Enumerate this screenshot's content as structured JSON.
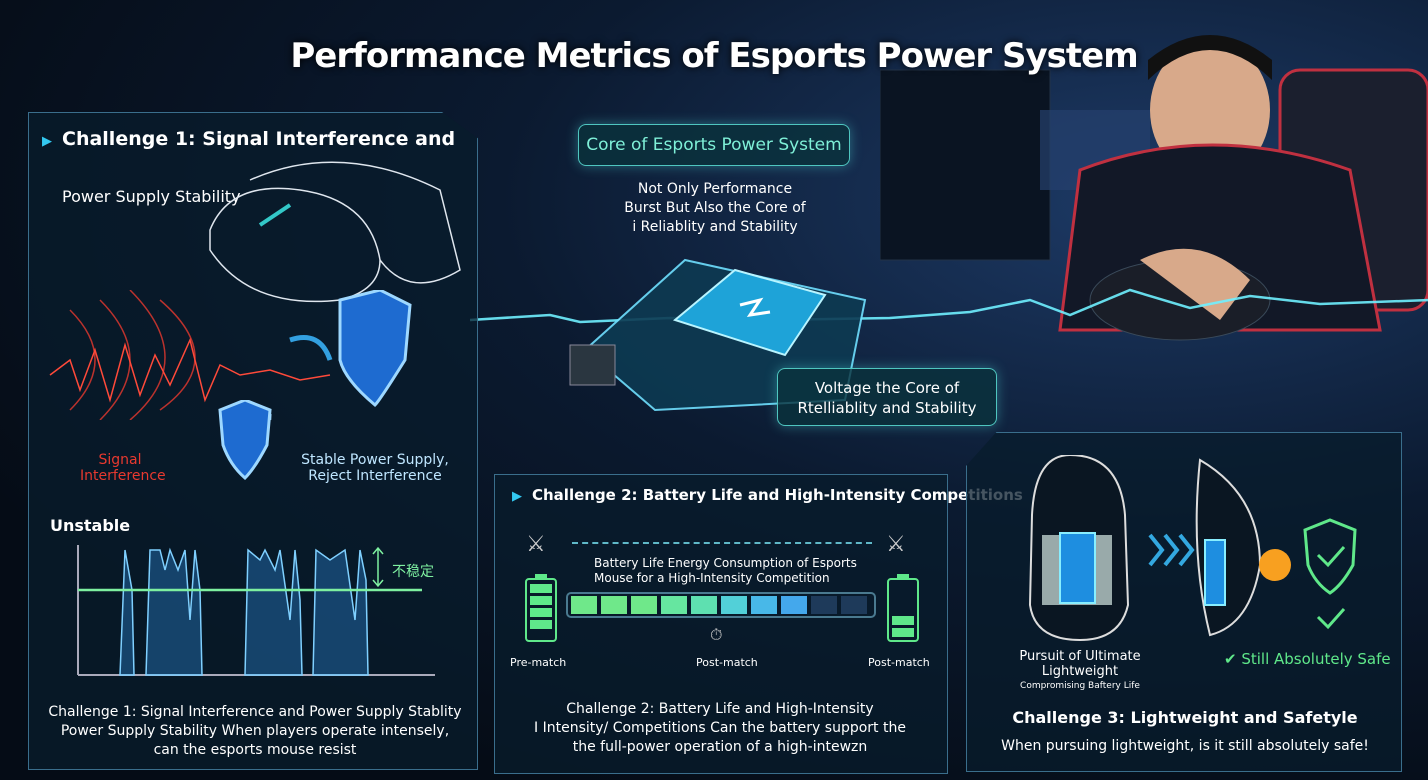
{
  "title": "Performance Metrics of Esports Power System",
  "colors": {
    "accent": "#33c8f0",
    "green": "#5fe88a",
    "red": "#e8392f",
    "panel_border": "#3a6e8c"
  },
  "challenge1": {
    "header": "Challenge 1:  Signal Interference and",
    "subheader": "Power Supply Stability",
    "signal_label": "Signal Interference",
    "stable_label": "Stable Power Supply, Reject Interference",
    "chart_label": "Unstable",
    "chart_annotation": "不稳定",
    "caption": [
      "Challenge 1: Signal Interference and Power Supply Stablity",
      "Power Supply Stability When players operate intensely,",
      "can the esports mouse resist"
    ]
  },
  "core": {
    "title": "Core of Esports Power System",
    "desc": [
      "Not Only Performance",
      "Burst But Also the Core of",
      "i Reliablity and Stability"
    ],
    "voltage": [
      "Voltage the Core of",
      "Rtelliablity and Stability"
    ]
  },
  "challenge2": {
    "header": "Challenge 2: Battery Life and High-Intensity Competitions",
    "bar_label": [
      "Battery Life Energy Consumption of Esports",
      "Mouse for a High-Intensity Competition"
    ],
    "battery_fill_percent": 80,
    "labels": [
      "Pre-match",
      "Post-match",
      "Post-match"
    ],
    "caption": [
      "Challenge 2: Battery Life and High-Intensity",
      "I Intensity/ Competitions Can the battery support the",
      "the full-power operation of a high-intewzn"
    ]
  },
  "challenge3": {
    "mouse_label": [
      "Pursuit of Ultimate",
      "Lightweight"
    ],
    "mouse_sublabel": "Compromising Baftery Life",
    "safe_label": "Still Absolutely Safe",
    "caption_title": "Challenge 3: Lightweight and Safetyle",
    "caption": "When pursuing lightweight, is it still absolutely safe!"
  }
}
